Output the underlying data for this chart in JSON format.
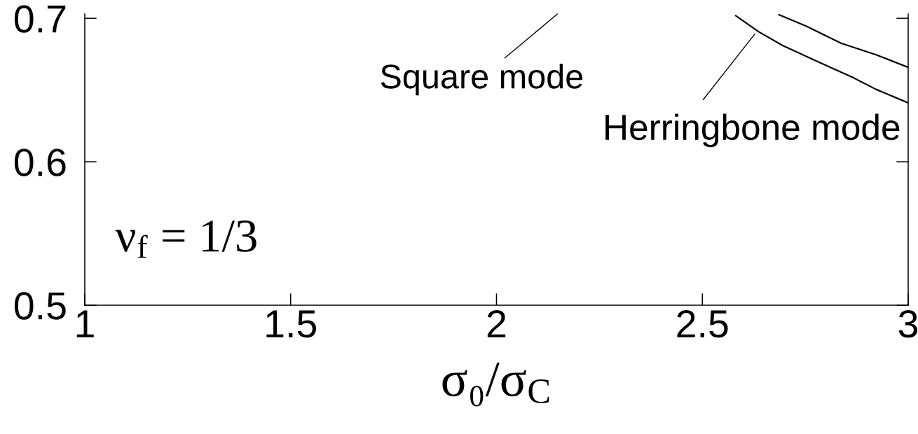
{
  "chart_data": {
    "type": "line",
    "xlabel": "σ₀/σ$_{C}$",
    "series": [
      {
        "color": "#000000",
        "x": [
          2.686,
          2.752,
          2.837,
          2.922,
          3.0
        ],
        "values": [
          0.7025,
          0.6946,
          0.6826,
          0.6746,
          0.6658
        ]
      },
      {
        "color": "#000000",
        "x": [
          2.581,
          2.637,
          2.695,
          2.78,
          2.865,
          2.921,
          3.0
        ],
        "values": [
          0.7018,
          0.6906,
          0.681,
          0.6698,
          0.6588,
          0.6506,
          0.641
        ]
      }
    ],
    "xlim": [
      1,
      3
    ],
    "ylim": [
      0.5,
      0.703
    ],
    "xticks": [
      1,
      1.5,
      2,
      2.5,
      3
    ],
    "yticks": [
      0.5,
      0.6,
      0.7
    ],
    "grid": false,
    "line_style": "solid",
    "annotations": [
      "Square mode",
      {
        "text": "Herringbone mode",
        "x": 2.63,
        "y": 0.69
      },
      "ν$_{f}$ = 1/3"
    ]
  }
}
